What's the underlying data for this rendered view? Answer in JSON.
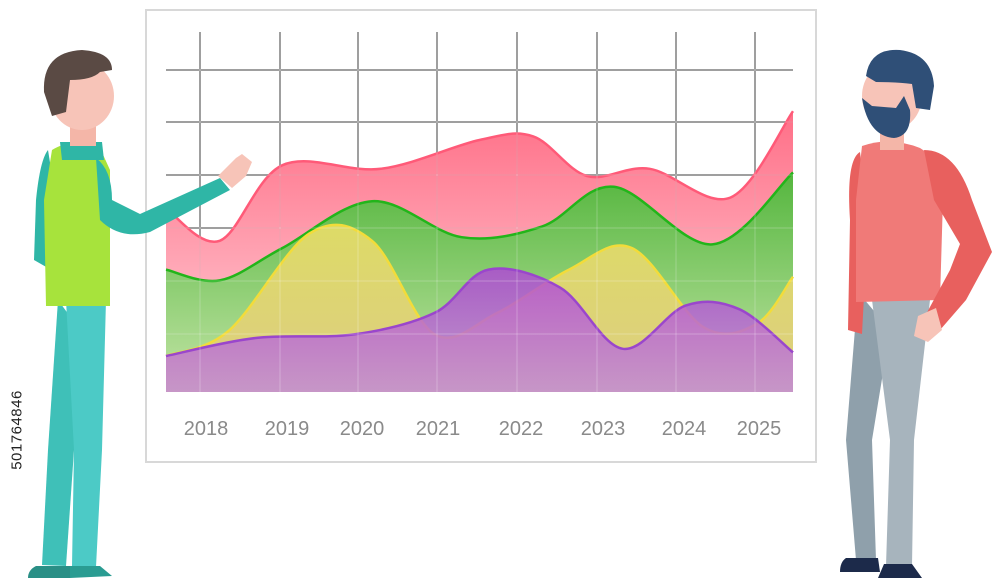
{
  "chart_data": {
    "type": "area",
    "categories": [
      "2018",
      "2019",
      "2020",
      "2021",
      "2022",
      "2023",
      "2024",
      "2025"
    ],
    "x_tick_positions": [
      2018,
      2019,
      2020,
      2021,
      2022,
      2023,
      2024,
      2025
    ],
    "xlim": [
      2018,
      2025
    ],
    "ylim": [
      0,
      10
    ],
    "grid": true,
    "legend": "none",
    "title": "",
    "xlabel": "",
    "ylabel": "",
    "series": [
      {
        "color": "#ff5f7a",
        "points": [
          [
            2018,
            5.1
          ],
          [
            2018.6,
            4.2
          ],
          [
            2019.3,
            6.3
          ],
          [
            2020.4,
            6.2
          ],
          [
            2021.5,
            7.0
          ],
          [
            2022.1,
            7.1
          ],
          [
            2022.7,
            6.0
          ],
          [
            2023.4,
            6.2
          ],
          [
            2024.3,
            5.4
          ],
          [
            2025,
            7.8
          ]
        ]
      },
      {
        "color": "#33c12a",
        "points": [
          [
            2018,
            3.4
          ],
          [
            2018.6,
            3.1
          ],
          [
            2019.3,
            4.0
          ],
          [
            2020.3,
            5.3
          ],
          [
            2021.3,
            4.3
          ],
          [
            2022.2,
            4.6
          ],
          [
            2023.0,
            5.7
          ],
          [
            2024.1,
            4.1
          ],
          [
            2025,
            6.1
          ]
        ]
      },
      {
        "color": "#f5e04a",
        "points": [
          [
            2018,
            1.0
          ],
          [
            2018.7,
            1.7
          ],
          [
            2019.6,
            4.4
          ],
          [
            2020.3,
            4.2
          ],
          [
            2021.0,
            1.6
          ],
          [
            2021.7,
            2.2
          ],
          [
            2022.5,
            3.4
          ],
          [
            2023.2,
            4.0
          ],
          [
            2024.0,
            1.8
          ],
          [
            2024.6,
            1.9
          ],
          [
            2025,
            3.2
          ]
        ]
      },
      {
        "color": "#a34ed6",
        "points": [
          [
            2018,
            1.0
          ],
          [
            2019.0,
            1.5
          ],
          [
            2020.1,
            1.6
          ],
          [
            2021.0,
            2.2
          ],
          [
            2021.6,
            3.4
          ],
          [
            2022.4,
            2.9
          ],
          [
            2023.1,
            1.2
          ],
          [
            2023.8,
            2.4
          ],
          [
            2024.4,
            2.3
          ],
          [
            2025,
            1.1
          ]
        ]
      }
    ]
  },
  "watermark": {
    "stock_id": "501764846"
  },
  "colors": {
    "board_border": "#d8d8d8",
    "grid": "#909090",
    "year_label": "#8a8a8a",
    "man_left_vest": "#a7e33c",
    "man_left_shirt": "#2fb6a6",
    "man_left_pants": "#4ccac6",
    "man_right_shirt": "#f07a78",
    "man_right_pants": "#a7b4bd",
    "beard": "#2f4f77",
    "skin": "#f7c4b8"
  }
}
